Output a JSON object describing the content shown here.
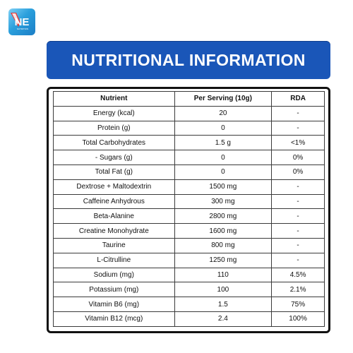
{
  "brand": {
    "logo_text": "NE",
    "logo_subtext": "NUTRITION",
    "colors": {
      "red": "#e23a3a",
      "blue": "#1a56b8",
      "light_blue": "#7fd0f5"
    }
  },
  "banner": {
    "title": "NUTRITIONAL INFORMATION",
    "background": "#1a56b8"
  },
  "table": {
    "headers": [
      "Nutrient",
      "Per Serving (10g)",
      "RDA"
    ],
    "rows": [
      [
        "Energy (kcal)",
        "20",
        "-"
      ],
      [
        "Protein (g)",
        "0",
        "-"
      ],
      [
        "Total Carbohydrates",
        "1.5 g",
        "<1%"
      ],
      [
        "- Sugars (g)",
        "0",
        "0%"
      ],
      [
        "Total Fat (g)",
        "0",
        "0%"
      ],
      [
        "Dextrose + Maltodextrin",
        "1500 mg",
        "-"
      ],
      [
        "Caffeine Anhydrous",
        "300 mg",
        "-"
      ],
      [
        "Beta-Alanine",
        "2800 mg",
        "-"
      ],
      [
        "Creatine Monohydrate",
        "1600 mg",
        "-"
      ],
      [
        "Taurine",
        "800 mg",
        "-"
      ],
      [
        "L-Citrulline",
        "1250 mg",
        "-"
      ],
      [
        "Sodium (mg)",
        "110",
        "4.5%"
      ],
      [
        "Potassium (mg)",
        "100",
        "2.1%"
      ],
      [
        "Vitamin B6 (mg)",
        "1.5",
        "75%"
      ],
      [
        "Vitamin B12 (mcg)",
        "2.4",
        "100%"
      ]
    ]
  }
}
